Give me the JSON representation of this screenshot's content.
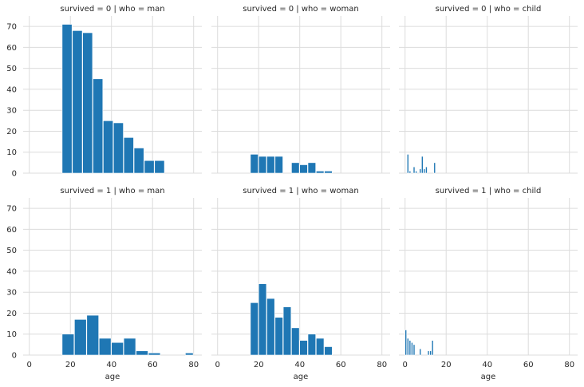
{
  "chart_data": {
    "type": "histogram-grid",
    "x_label": "age",
    "xlim": [
      -3,
      84
    ],
    "ylim": [
      0,
      75
    ],
    "x_ticks": [
      0,
      20,
      40,
      60,
      80
    ],
    "y_ticks": [
      0,
      10,
      20,
      30,
      40,
      50,
      60,
      70
    ],
    "bar_color": "#1f77b4",
    "grid": true,
    "panels": [
      {
        "title": "survived = 0 | who = man",
        "bins": [
          [
            16,
            21,
            71
          ],
          [
            21,
            26,
            68
          ],
          [
            26,
            31,
            67
          ],
          [
            31,
            36,
            45
          ],
          [
            36,
            41,
            25
          ],
          [
            41,
            46,
            24
          ],
          [
            46,
            51,
            17
          ],
          [
            51,
            56,
            12
          ],
          [
            56,
            61,
            6
          ],
          [
            61,
            66,
            6
          ]
        ]
      },
      {
        "title": "survived = 0 | who = woman",
        "bins": [
          [
            16,
            20,
            9
          ],
          [
            20,
            24,
            8
          ],
          [
            24,
            28,
            8
          ],
          [
            28,
            32,
            8
          ],
          [
            36,
            40,
            5
          ],
          [
            40,
            44,
            4
          ],
          [
            44,
            48,
            5
          ],
          [
            48,
            52,
            1
          ],
          [
            52,
            56,
            1
          ]
        ]
      },
      {
        "title": "survived = 0 | who = child",
        "bins": [
          [
            1,
            2,
            9
          ],
          [
            2,
            3,
            1
          ],
          [
            3,
            4,
            0
          ],
          [
            4,
            5,
            3
          ],
          [
            5,
            6,
            1
          ],
          [
            6,
            7,
            0
          ],
          [
            7,
            8,
            2
          ],
          [
            8,
            9,
            8
          ],
          [
            9,
            10,
            2
          ],
          [
            10,
            11,
            3
          ],
          [
            11,
            12,
            0
          ],
          [
            12,
            13,
            0
          ],
          [
            13,
            14,
            0
          ],
          [
            14,
            15,
            5
          ]
        ]
      },
      {
        "title": "survived = 1 | who = man",
        "bins": [
          [
            16,
            22,
            10
          ],
          [
            22,
            28,
            17
          ],
          [
            28,
            34,
            19
          ],
          [
            34,
            40,
            8
          ],
          [
            40,
            46,
            6
          ],
          [
            46,
            52,
            8
          ],
          [
            52,
            58,
            2
          ],
          [
            58,
            64,
            1
          ],
          [
            64,
            70,
            0
          ],
          [
            70,
            76,
            0
          ],
          [
            76,
            80,
            1
          ]
        ]
      },
      {
        "title": "survived = 1 | who = woman",
        "bins": [
          [
            16,
            20,
            25
          ],
          [
            20,
            24,
            34
          ],
          [
            24,
            28,
            27
          ],
          [
            28,
            32,
            18
          ],
          [
            32,
            36,
            23
          ],
          [
            36,
            40,
            13
          ],
          [
            40,
            44,
            7
          ],
          [
            44,
            48,
            10
          ],
          [
            48,
            52,
            8
          ],
          [
            52,
            56,
            4
          ]
        ]
      },
      {
        "title": "survived = 1 | who = child",
        "bins": [
          [
            0,
            1,
            12
          ],
          [
            1,
            2,
            8
          ],
          [
            2,
            3,
            7
          ],
          [
            3,
            4,
            6
          ],
          [
            4,
            5,
            5
          ],
          [
            5,
            6,
            0
          ],
          [
            6,
            7,
            0
          ],
          [
            7,
            8,
            3
          ],
          [
            8,
            9,
            0
          ],
          [
            9,
            10,
            0
          ],
          [
            10,
            11,
            0
          ],
          [
            11,
            12,
            2
          ],
          [
            12,
            13,
            2
          ],
          [
            13,
            14,
            7
          ]
        ]
      }
    ]
  }
}
